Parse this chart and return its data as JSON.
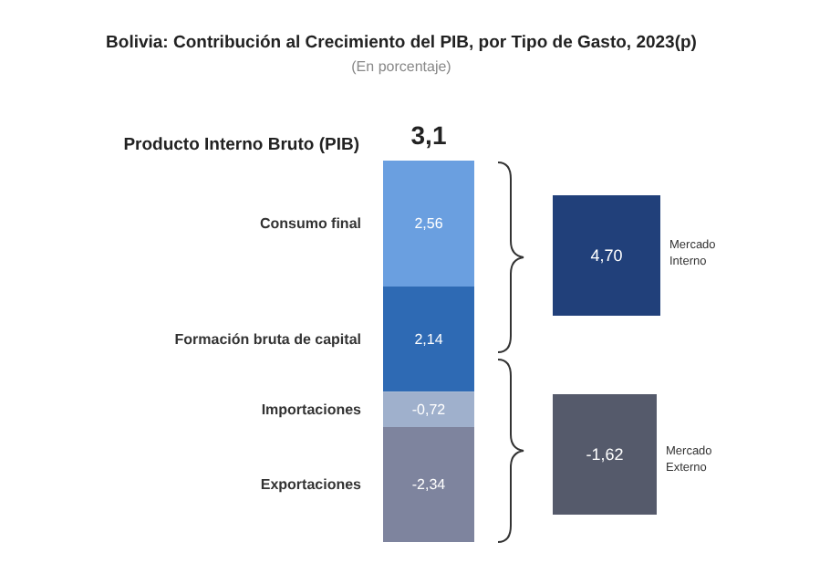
{
  "chart_data": {
    "type": "bar",
    "title": "Bolivia: Contribución al Crecimiento del PIB, por Tipo de Gasto, 2023(p)",
    "subtitle": "(En porcentaje)",
    "categories": [
      null
    ],
    "stacked": true,
    "series": [
      {
        "name": "Formación bruta de capital",
        "color": "#2e6ab4",
        "values": [
          2.14
        ],
        "value_labels": [
          "2,14"
        ]
      },
      {
        "name": "Consumo final",
        "color": "#6a9fe0",
        "values": [
          2.56
        ],
        "value_labels": [
          "2,56"
        ]
      },
      {
        "name": "Importaciones",
        "color": "#9fb0cc",
        "values": [
          -0.72
        ],
        "value_labels": [
          "-0,72"
        ]
      },
      {
        "name": "Exportaciones",
        "color": "#7e849e",
        "values": [
          -2.34
        ],
        "value_labels": [
          "-2,34"
        ]
      }
    ],
    "annotations": [
      "4,70",
      "Mercado Interno",
      "-1,62",
      "Mercado Externo",
      "3,1",
      "Producto Interno Bruto (PIB)"
    ],
    "legend": false,
    "grid": false
  }
}
